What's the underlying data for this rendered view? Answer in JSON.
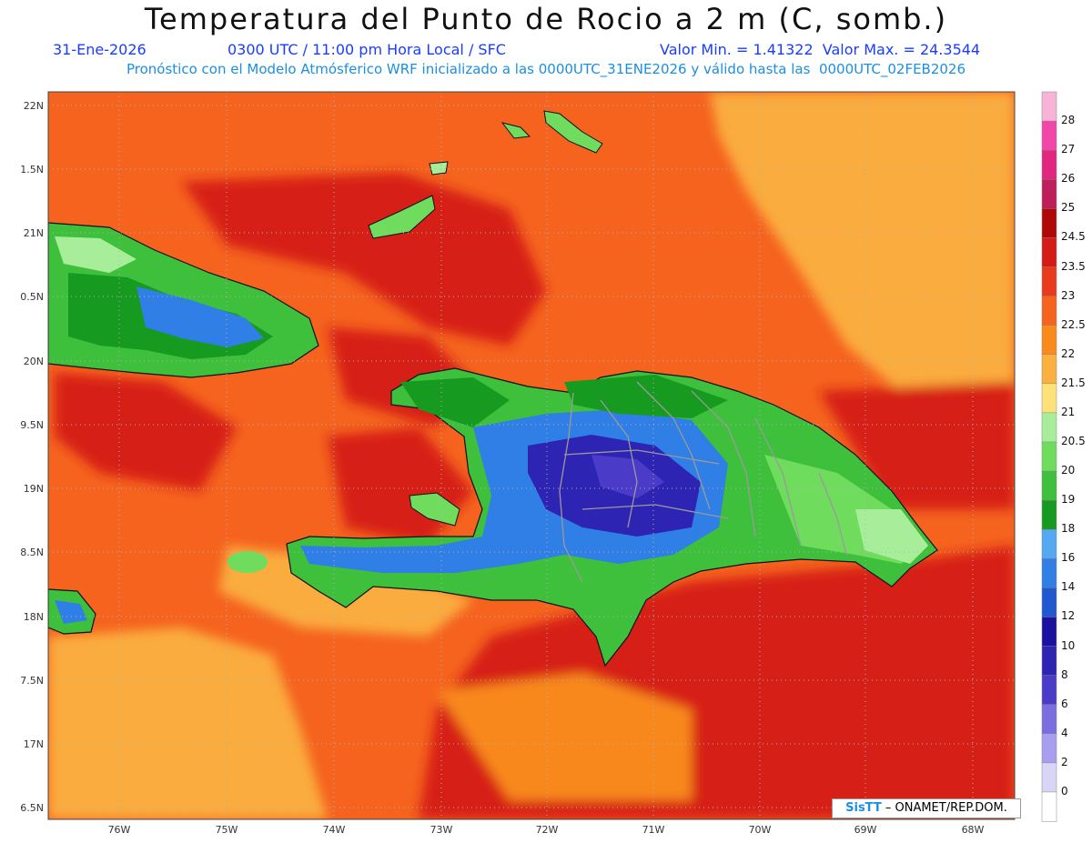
{
  "title": "Temperatura del Punto de Rocio a 2 m (C, somb.)",
  "subtitle": {
    "date": "31-Ene-2026",
    "time": "0300 UTC / 11:00 pm Hora Local / SFC",
    "minmax": "Valor Min. = 1.41322  Valor Max. = 24.3544",
    "model": "Pronóstico con el Modelo Atmósferico WRF inicializado a las 0000UTC_31ENE2026 y válido hasta las  0000UTC_02FEB2026"
  },
  "lat_labels": [
    "22N",
    "1.5N",
    "21N",
    "0.5N",
    "20N",
    "9.5N",
    "19N",
    "8.5N",
    "18N",
    "7.5N",
    "17N",
    "6.5N"
  ],
  "lon_labels": [
    "76W",
    "75W",
    "74W",
    "73W",
    "72W",
    "71W",
    "70W",
    "69W",
    "68W"
  ],
  "colorbar": {
    "labels": [
      "28",
      "27",
      "26",
      "25",
      "24.5",
      "23.5",
      "23",
      "22.5",
      "22",
      "21.5",
      "21",
      "20.5",
      "20",
      "19",
      "18",
      "16",
      "14",
      "12",
      "10",
      "8",
      "6",
      "4",
      "2",
      "0"
    ],
    "colors": [
      "#f7b4d8",
      "#f246a8",
      "#e0267e",
      "#c01e5a",
      "#b00808",
      "#d51b15",
      "#ea3a1c",
      "#f5631f",
      "#f98a1b",
      "#fbb040",
      "#fde27a",
      "#a8ee9a",
      "#6fdc5e",
      "#3ec03c",
      "#169a20",
      "#55a8f2",
      "#2f7fe6",
      "#1f58d0",
      "#1c10a0",
      "#2d24b4",
      "#4a3cc8",
      "#7a6ee0",
      "#a89ef0",
      "#d8d6f6",
      "#ffffff"
    ]
  },
  "credit": {
    "brand": "SisTT",
    "text": " – ONAMET/REP.DOM."
  },
  "field_colors": {
    "ocean_orange": "#f5631f",
    "ocean_red": "#d51b15",
    "light_orange": "#fbb040",
    "green_dark": "#169a20",
    "green": "#3ec03c",
    "light_green": "#a8ee9a",
    "blue": "#2f7fe6",
    "purple": "#2d24b4"
  }
}
